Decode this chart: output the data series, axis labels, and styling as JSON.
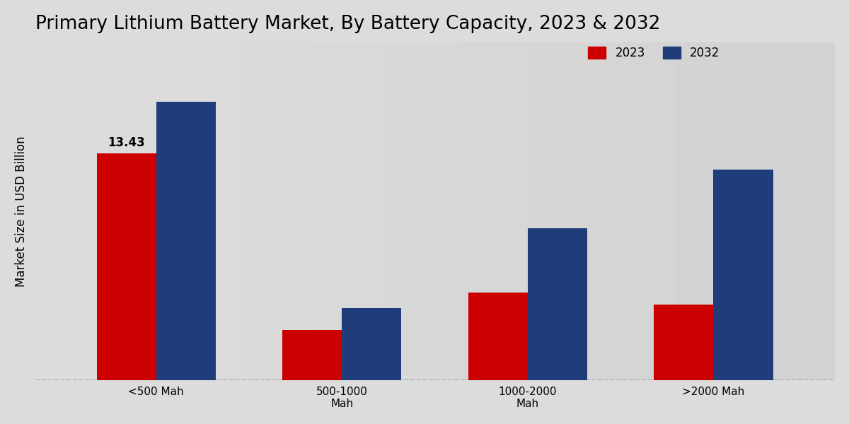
{
  "title": "Primary Lithium Battery Market, By Battery Capacity, 2023 & 2032",
  "ylabel": "Market Size in USD Billion",
  "categories": [
    "<500 Mah",
    "500-1000\nMah",
    "1000-2000\nMah",
    ">2000 Mah"
  ],
  "values_2023": [
    13.43,
    3.0,
    5.2,
    4.5
  ],
  "values_2032": [
    16.5,
    4.3,
    9.0,
    12.5
  ],
  "color_2023": "#cc0000",
  "color_2032": "#1f3d7a",
  "annotation_label": "13.43",
  "annotation_bar": 0,
  "legend_labels": [
    "2023",
    "2032"
  ],
  "bg_left": "#dcdcdc",
  "bg_right": "#d0d0d0",
  "title_fontsize": 19,
  "axis_label_fontsize": 12,
  "tick_fontsize": 11,
  "legend_fontsize": 12,
  "bar_width": 0.32,
  "ylim": [
    0,
    20
  ],
  "dashed_line_color": "#999999"
}
